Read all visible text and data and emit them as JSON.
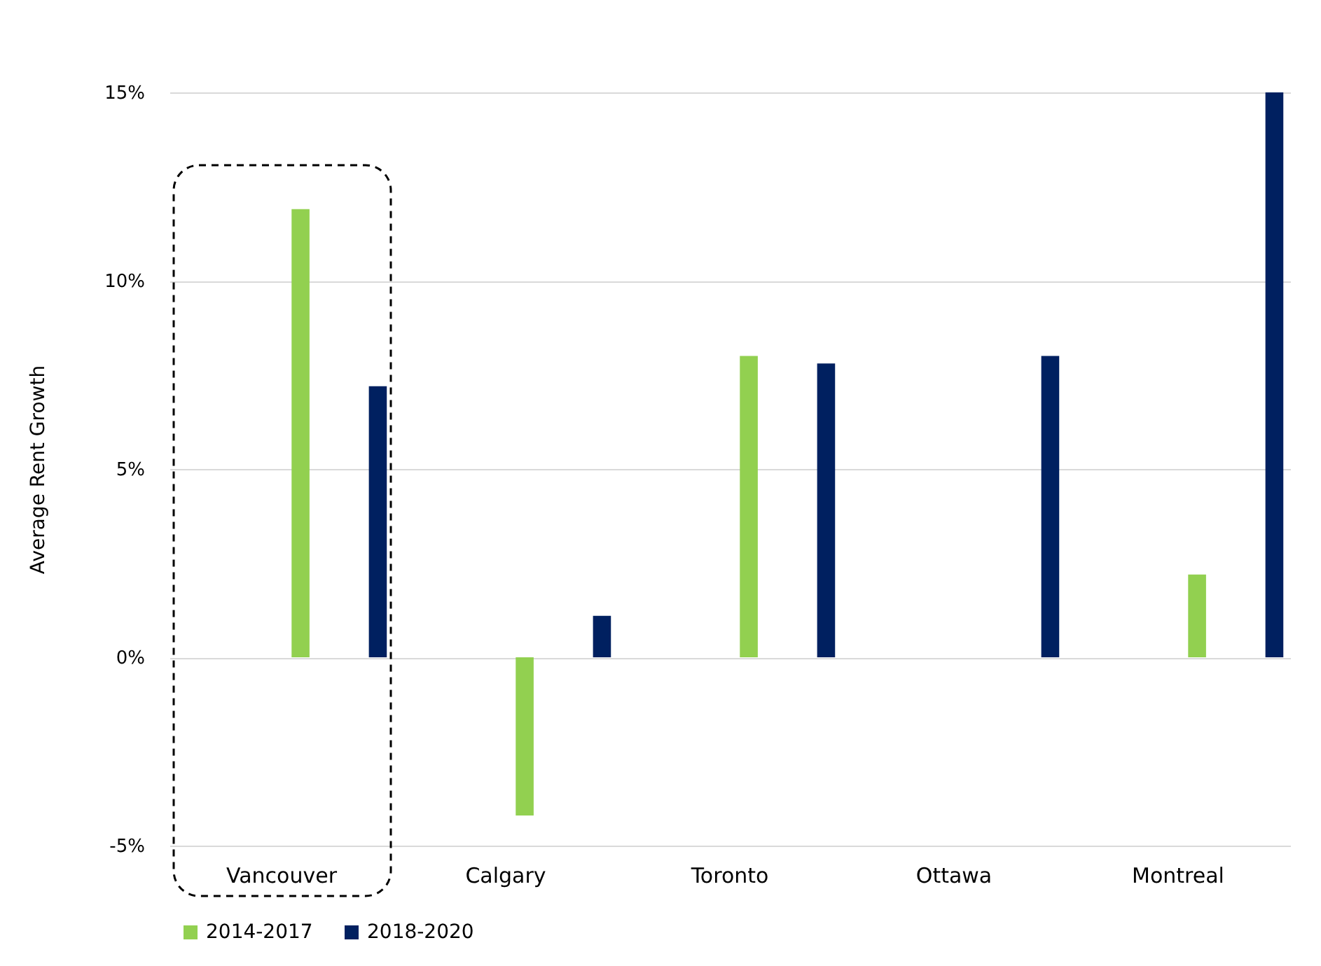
{
  "chart_data": {
    "type": "bar",
    "ylabel": "Average Rent Growth",
    "categories": [
      "Vancouver",
      "Calgary",
      "Toronto",
      "Ottawa",
      "Montreal"
    ],
    "series": [
      {
        "name": "2014-2017",
        "color": "#92d050",
        "values": [
          11.9,
          -4.2,
          8.0,
          0.0,
          2.2
        ]
      },
      {
        "name": "2018-2020",
        "color": "#002060",
        "values": [
          7.2,
          1.1,
          7.8,
          8.0,
          15.0
        ]
      }
    ],
    "ylim": [
      -5,
      15
    ],
    "yticks": [
      {
        "value": -5,
        "label": "-5%"
      },
      {
        "value": 0,
        "label": "0%"
      },
      {
        "value": 5,
        "label": "5%"
      },
      {
        "value": 10,
        "label": "10%"
      },
      {
        "value": 15,
        "label": "15%"
      }
    ],
    "grid": "y",
    "legend": "bottom"
  }
}
